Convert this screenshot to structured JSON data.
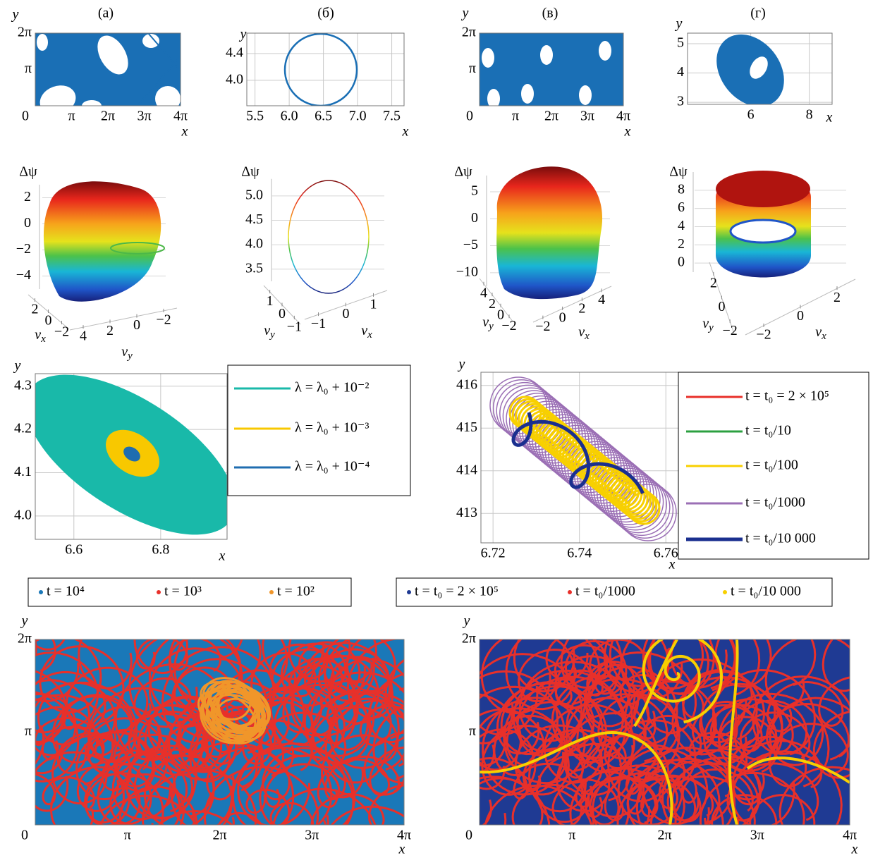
{
  "chart_data": [
    {
      "type": "scatter",
      "panel_label": "(а)",
      "xlabel": "x",
      "ylabel": "y",
      "color": "#1a6fb5",
      "xlim": [
        0,
        12.566
      ],
      "ylim": [
        0,
        6.283
      ],
      "xticks": [
        0,
        {
          "value": 3.1416,
          "label": "π"
        },
        {
          "value": 6.2832,
          "label": "2π"
        },
        {
          "value": 9.4248,
          "label": "3π"
        },
        {
          "value": 12.566,
          "label": "4π"
        }
      ],
      "yticks": [
        {
          "value": 3.1416,
          "label": "π"
        },
        {
          "value": 6.2832,
          "label": "2π"
        }
      ]
    },
    {
      "type": "scatter",
      "panel_label": "(б)",
      "xlabel": "x",
      "ylabel": "y",
      "color": "#1a6fb5",
      "xlim": [
        5.38,
        7.68
      ],
      "ylim": [
        3.62,
        4.705
      ],
      "xticks": [
        5.5,
        {
          "value": 6,
          "label": "6.0"
        },
        6.5,
        {
          "value": 7,
          "label": "7.0"
        },
        7.5
      ],
      "yticks": [
        {
          "value": 4,
          "label": "4.0"
        },
        4.4
      ]
    },
    {
      "type": "scatter",
      "panel_label": "(в)",
      "xlabel": "x",
      "ylabel": "y",
      "color": "#1a6fb5",
      "xlim": [
        0,
        12.566
      ],
      "ylim": [
        0,
        6.283
      ],
      "xticks": [
        0,
        {
          "value": 3.1416,
          "label": "π"
        },
        {
          "value": 6.2832,
          "label": "2π"
        },
        {
          "value": 9.4248,
          "label": "3π"
        },
        {
          "value": 12.566,
          "label": "4π"
        }
      ],
      "yticks": [
        {
          "value": 3.1416,
          "label": "π"
        },
        {
          "value": 6.2832,
          "label": "2π"
        }
      ]
    },
    {
      "type": "scatter",
      "panel_label": "(г)",
      "xlabel": "x",
      "ylabel": "y",
      "color": "#1a6fb5",
      "xlim": [
        3.84,
        8.78
      ],
      "ylim": [
        2.93,
        5.36
      ],
      "xticks": [
        6,
        8
      ],
      "yticks": [
        3,
        4,
        5
      ]
    },
    {
      "type": "surface3d",
      "zlabel": "Δψ",
      "xlabel": [
        "v",
        "x"
      ],
      "ylabel": [
        "v",
        "y"
      ],
      "zlim": [
        -5,
        3
      ],
      "zticks": [
        2,
        0,
        {
          "value": -2,
          "label": "−2"
        },
        {
          "value": -4,
          "label": "−4"
        }
      ],
      "xlim": [
        3,
        -3
      ],
      "xticks": [
        2,
        0,
        {
          "value": -2,
          "label": "−2"
        }
      ],
      "ylim": [
        5,
        -3
      ],
      "yticks": [
        4,
        2,
        0,
        {
          "value": -2,
          "label": "−2"
        }
      ]
    },
    {
      "type": "surface3d",
      "zlabel": "Δψ",
      "xlabel": [
        "v",
        "x"
      ],
      "ylabel": [
        "v",
        "y"
      ],
      "zlim": [
        3.25,
        5.35
      ],
      "zticks": [
        {
          "value": 5,
          "label": "5.0"
        },
        4.5,
        {
          "value": 4,
          "label": "4.0"
        },
        3.5
      ],
      "xlim": [
        -1.5,
        1.5
      ],
      "xticks": [
        {
          "value": -1,
          "label": "−1"
        },
        0,
        1
      ],
      "ylim": [
        1.5,
        -1.5
      ],
      "yticks": [
        1,
        0,
        {
          "value": -1,
          "label": "−1"
        }
      ]
    },
    {
      "type": "surface3d",
      "zlabel": "Δψ",
      "xlabel": [
        "v",
        "x"
      ],
      "ylabel": [
        "v",
        "y"
      ],
      "zlim": [
        -12.5,
        8
      ],
      "zticks": [
        5,
        0,
        {
          "value": -5,
          "label": "−5"
        },
        {
          "value": -10,
          "label": "−10"
        }
      ],
      "xlim": [
        -3,
        5
      ],
      "xticks": [
        {
          "value": -2,
          "label": "−2"
        },
        0,
        2,
        4
      ],
      "ylim": [
        5,
        -3
      ],
      "yticks": [
        4,
        2,
        0,
        {
          "value": -2,
          "label": "−2"
        }
      ]
    },
    {
      "type": "surface3d",
      "zlabel": "Δψ",
      "xlabel": [
        "v",
        "x"
      ],
      "ylabel": [
        "v",
        "y"
      ],
      "zlim": [
        -1,
        10
      ],
      "zticks": [
        8,
        6,
        4,
        2,
        0
      ],
      "xlim": [
        -3,
        3
      ],
      "xticks": [
        {
          "value": -2,
          "label": "−2"
        },
        0,
        2
      ],
      "ylim": [
        3,
        -3
      ],
      "yticks": [
        2,
        0,
        {
          "value": -2,
          "label": "−2"
        }
      ]
    },
    {
      "type": "scatter",
      "xlabel": "x",
      "ylabel": "y",
      "xlim": [
        6.511,
        6.953
      ],
      "ylim": [
        3.946,
        4.329
      ],
      "xticks": [
        6.6,
        6.8
      ],
      "yticks": [
        4.3,
        4.2,
        4.1,
        {
          "value": 4,
          "label": "4.0"
        }
      ],
      "series": [
        {
          "name": "λ = λ₀ + 10⁻²",
          "color": "#19b9a9"
        },
        {
          "name": "λ = λ₀ + 10⁻³",
          "color": "#f8c800"
        },
        {
          "name": "λ = λ₀ + 10⁻⁴",
          "color": "#1f6db0"
        }
      ]
    },
    {
      "type": "scatter",
      "xlabel": "x",
      "ylabel": "y",
      "xlim": [
        6.7172,
        6.7629
      ],
      "ylim": [
        412.31,
        416.31
      ],
      "xticks": [
        6.72,
        6.74,
        6.76
      ],
      "yticks": [
        416,
        415,
        414,
        413
      ],
      "series": [
        {
          "name": "t = t₀ = 2 × 10⁵",
          "color": "#e8302a"
        },
        {
          "name": "t = t₀/10",
          "color": "#2ca040"
        },
        {
          "name": "t = t₀/100",
          "color": "#f8d000"
        },
        {
          "name": "t = t₀/1000",
          "color": "#9b6fb5"
        },
        {
          "name": "t = t₀/10 000",
          "color": "#1a2f8f"
        }
      ]
    },
    {
      "type": "scatter",
      "xlabel": "x",
      "ylabel": "y",
      "xlim": [
        0,
        12.566
      ],
      "ylim": [
        0,
        6.283
      ],
      "xticks": [
        0,
        {
          "value": 3.1416,
          "label": "π"
        },
        {
          "value": 6.2832,
          "label": "2π"
        },
        {
          "value": 9.4248,
          "label": "3π"
        },
        {
          "value": 12.566,
          "label": "4π"
        }
      ],
      "yticks": [
        {
          "value": 3.1416,
          "label": "π"
        },
        {
          "value": 6.2832,
          "label": "2π"
        }
      ],
      "series": [
        {
          "name": "t = 10⁴",
          "color": "#1a78b8"
        },
        {
          "name": "t = 10³",
          "color": "#e8302a"
        },
        {
          "name": "t = 10²",
          "color": "#f0962a"
        }
      ]
    },
    {
      "type": "scatter",
      "xlabel": "x",
      "ylabel": "y",
      "xlim": [
        0,
        12.566
      ],
      "ylim": [
        0,
        6.283
      ],
      "xticks": [
        0,
        {
          "value": 3.1416,
          "label": "π"
        },
        {
          "value": 6.2832,
          "label": "2π"
        },
        {
          "value": 9.4248,
          "label": "3π"
        },
        {
          "value": 12.566,
          "label": "4π"
        }
      ],
      "yticks": [
        {
          "value": 3.1416,
          "label": "π"
        },
        {
          "value": 6.2832,
          "label": "2π"
        }
      ],
      "series": [
        {
          "name": "t = t₀ = 2 × 10⁵",
          "color": "#1f3a93"
        },
        {
          "name": "t = t₀/1000",
          "color": "#e8302a"
        },
        {
          "name": "t = t₀/10 000",
          "color": "#f8d000"
        }
      ]
    }
  ]
}
